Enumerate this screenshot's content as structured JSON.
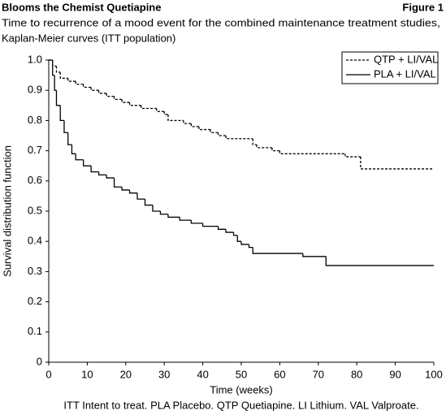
{
  "chart_data": {
    "type": "line",
    "step": "post",
    "title": "Blooms the Chemist Quetiapine",
    "figure_label": "Figure 1",
    "subtitle": [
      "Time to recurrence of a mood event for the combined maintenance treatment studies,",
      "Kaplan-Meier curves (ITT population)"
    ],
    "xlabel": "Time (weeks)",
    "ylabel": "Survival distribution function",
    "footnote": "ITT Intent to treat. PLA Placebo. QTP Quetiapine. LI Lithium. VAL Valproate.",
    "xlim": [
      0,
      100
    ],
    "xticks": [
      0,
      10,
      20,
      30,
      40,
      50,
      60,
      70,
      80,
      90,
      100
    ],
    "ylim": [
      0,
      1
    ],
    "yticks": [
      0,
      0.1,
      0.2,
      0.3,
      0.4,
      0.5,
      0.6,
      0.7,
      0.8,
      0.9,
      {
        "value": 1,
        "label": "1.0"
      }
    ],
    "grid": false,
    "legend": "top-right",
    "series": [
      {
        "name": "QTP + LI/VAL",
        "color": "#000000",
        "dash": "dashed",
        "x": [
          0,
          1,
          2,
          3,
          5,
          7,
          9,
          11,
          13,
          15,
          17,
          19,
          21,
          24,
          28,
          30,
          31,
          35,
          37,
          39,
          42,
          44,
          46,
          53,
          54,
          58,
          60,
          77,
          81,
          100
        ],
        "values": [
          1,
          0.98,
          0.96,
          0.94,
          0.93,
          0.92,
          0.91,
          0.9,
          0.89,
          0.88,
          0.87,
          0.86,
          0.85,
          0.84,
          0.83,
          0.82,
          0.8,
          0.79,
          0.78,
          0.77,
          0.76,
          0.75,
          0.74,
          0.72,
          0.71,
          0.7,
          0.69,
          0.68,
          0.64,
          0.64
        ]
      },
      {
        "name": "PLA + LI/VAL",
        "color": "#000000",
        "dash": "solid",
        "x": [
          0,
          1,
          1.5,
          2,
          3,
          4,
          5,
          6,
          7,
          9,
          11,
          13,
          15,
          17,
          19,
          21,
          23,
          25,
          27,
          29,
          31,
          34,
          37,
          40,
          44,
          46,
          48,
          49,
          50,
          52,
          53,
          66,
          72,
          100
        ],
        "values": [
          1,
          0.95,
          0.9,
          0.85,
          0.8,
          0.76,
          0.72,
          0.69,
          0.67,
          0.65,
          0.63,
          0.62,
          0.61,
          0.58,
          0.57,
          0.56,
          0.54,
          0.52,
          0.5,
          0.49,
          0.48,
          0.47,
          0.46,
          0.45,
          0.44,
          0.43,
          0.42,
          0.4,
          0.39,
          0.38,
          0.36,
          0.35,
          0.32,
          0.32
        ]
      }
    ]
  }
}
